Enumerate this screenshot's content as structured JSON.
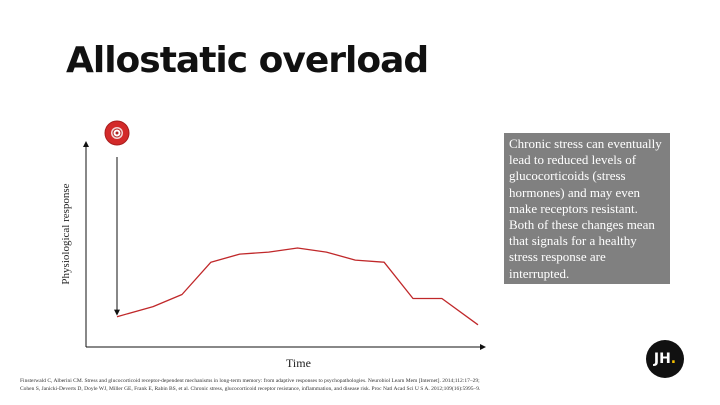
{
  "title": "Allostatic overload",
  "y_axis_label": "Physiological response",
  "x_axis_label": "Time",
  "info_text": "Chronic stress can eventually lead to reduced levels of glucocorticoids (stress hormones) and may even make receptors resistant. Both of these changes mean that signals for a healthy stress response are interrupted.",
  "references": [
    "Finsterwald C, Alberini CM. Stress and glucocorticoid receptor-dependent mechanisms in long-term memory: from adaptive responses to psychopathologies. Neurobiol Learn Mem [Internet]. 2014;112:17–29;",
    "Cohen S, Janicki-Deverts D, Doyle WJ, Miller GE, Frank E, Rabin BS, et al. Chronic stress, glucocorticoid receptor resistance, inflammation, and disease risk. Proc Natl Acad Sci U S A. 2012;109(16):5995–9."
  ],
  "logo": {
    "text": "JH",
    "dot": ".",
    "dot_color": "#f5c000"
  },
  "colors": {
    "curve": "#c0282a",
    "stressor_icon": "#d32a2a",
    "info_box": "#808080"
  },
  "icons": {
    "stressor": "alarm-bell-icon"
  },
  "chart_data": {
    "type": "line",
    "xlabel": "Time",
    "ylabel": "Physiological response",
    "xlim": [
      0,
      100
    ],
    "ylim": [
      0,
      100
    ],
    "series": [
      {
        "x": [
          0,
          10,
          18,
          26,
          34,
          42,
          50,
          58,
          66,
          74,
          82,
          90,
          100
        ],
        "y": [
          15,
          20,
          26,
          42,
          46,
          47,
          49,
          47,
          43,
          42,
          24,
          24,
          11
        ]
      }
    ],
    "stressor_arrow": {
      "x": 0,
      "from_y": 100,
      "to_y": 17
    }
  }
}
